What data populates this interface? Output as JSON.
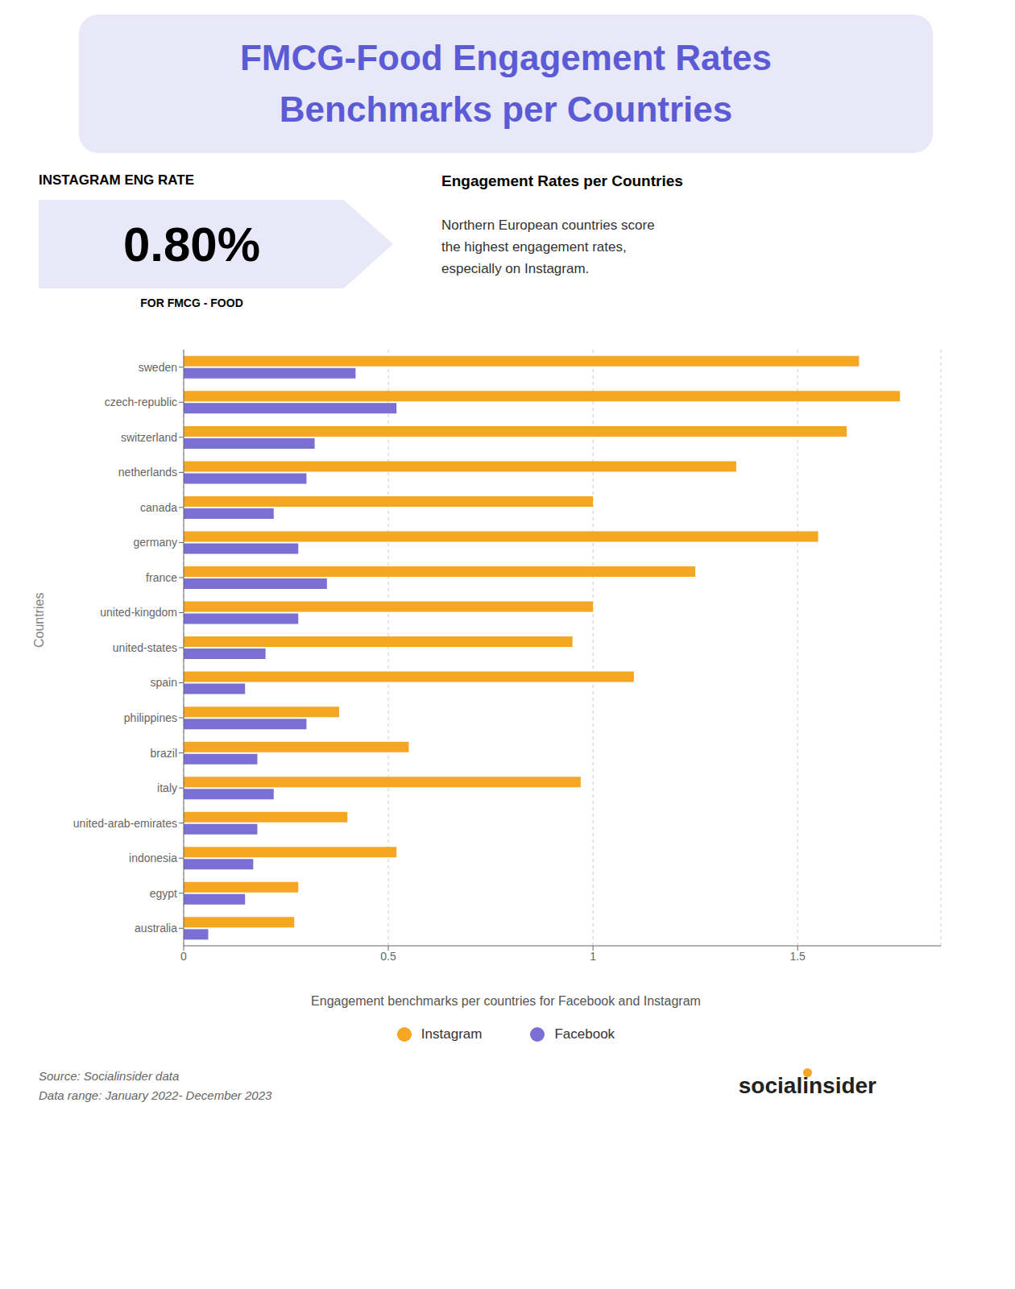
{
  "chart_data": {
    "type": "bar",
    "orientation": "horizontal",
    "title": "FMCG-Food Engagement Rates\nBenchmarks per Countries",
    "y_label": "Countries",
    "categories": [
      "sweden",
      "czech-republic",
      "switzerland",
      "netherlands",
      "canada",
      "germany",
      "france",
      "united-kingdom",
      "united-states",
      "spain",
      "philippines",
      "brazil",
      "italy",
      "united-arab-emirates",
      "indonesia",
      "egypt",
      "australia"
    ],
    "series": [
      {
        "name": "Instagram",
        "color": "#F5A623",
        "values": [
          1.65,
          1.75,
          1.62,
          1.35,
          1.0,
          1.55,
          1.25,
          1.0,
          0.95,
          1.1,
          0.38,
          0.55,
          0.97,
          0.4,
          0.52,
          0.28,
          0.27
        ]
      },
      {
        "name": "Facebook",
        "color": "#7B6FD4",
        "values": [
          0.42,
          0.52,
          0.32,
          0.3,
          0.22,
          0.28,
          0.35,
          0.28,
          0.2,
          0.15,
          0.3,
          0.18,
          0.22,
          0.18,
          0.17,
          0.15,
          0.06
        ]
      }
    ],
    "xlim": [
      0,
      1.85
    ],
    "xticks": [
      0,
      0.5,
      1,
      1.5
    ],
    "grid": true,
    "legend": "bottom",
    "annotations": {
      "info_label": "INSTAGRAM ENG RATE",
      "info_value": "0.80%",
      "info_caption": "FOR FMCG - FOOD",
      "info_title": "Engagement Rates per Countries",
      "info_text": "Northern European countries score\nthe highest engagement rates,\nespecially on Instagram.",
      "caption": "Engagement benchmarks per countries for Facebook and Instagram",
      "source": "Source: Socialinsider data\nData range: January 2022- December 2023",
      "logo": [
        "social",
        "insider"
      ]
    }
  }
}
